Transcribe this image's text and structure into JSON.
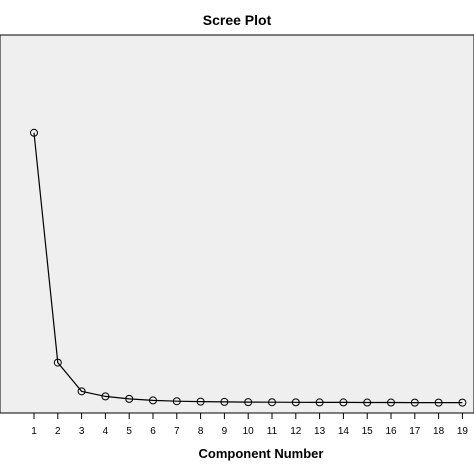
{
  "chart_data": {
    "type": "line",
    "title": "Scree Plot",
    "xlabel": "Component Number",
    "ylabel": "",
    "x": [
      1,
      2,
      3,
      4,
      5,
      6,
      7,
      8,
      9,
      10,
      11,
      12,
      13,
      14,
      15,
      16,
      17,
      18,
      19
    ],
    "x_tick_labels": [
      "1",
      "2",
      "3",
      "4",
      "5",
      "6",
      "7",
      "8",
      "9",
      "10",
      "11",
      "12",
      "13",
      "14",
      "15",
      "16",
      "17",
      "18",
      "19"
    ],
    "series": [
      {
        "values": [
          26.8,
          4.0,
          1.15,
          0.65,
          0.4,
          0.25,
          0.17,
          0.13,
          0.1,
          0.08,
          0.07,
          0.06,
          0.05,
          0.05,
          0.04,
          0.04,
          0.03,
          0.03,
          0.03
        ]
      }
    ],
    "ylim": [
      -1,
      36.5
    ],
    "grid": false,
    "legend": "none",
    "y_axis_visible": false,
    "colors": {
      "plot_background": "#efefef",
      "line": "#000000",
      "marker_edge": "#000000",
      "marker_fill": "none"
    }
  }
}
